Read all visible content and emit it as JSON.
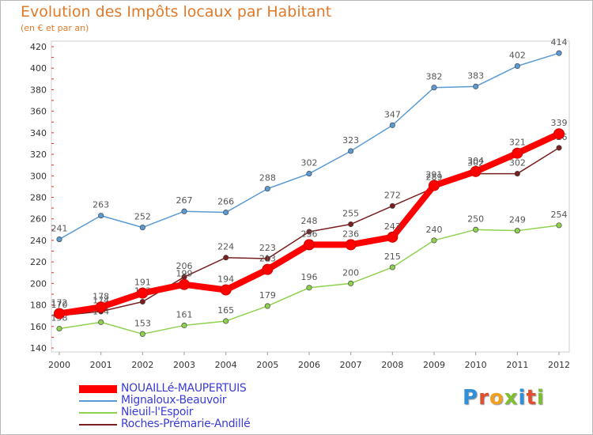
{
  "header": {
    "title": "Evolution des Impôts locaux par Habitant",
    "subtitle": "(en € et par an)"
  },
  "brand": {
    "letters": [
      "P",
      "r",
      "o",
      "x",
      "i",
      "t",
      "i"
    ],
    "colors": [
      "#2f8fd8",
      "#e05030",
      "#f0a020",
      "#7cc030",
      "#2f8fd8",
      "#e05030",
      "#7cc030"
    ]
  },
  "chart_data": {
    "type": "line",
    "x": [
      2000,
      2001,
      2002,
      2003,
      2004,
      2005,
      2006,
      2007,
      2008,
      2009,
      2010,
      2011,
      2012
    ],
    "ylim": [
      140,
      420
    ],
    "yticks": [
      140,
      160,
      180,
      200,
      220,
      240,
      260,
      280,
      300,
      320,
      340,
      360,
      380,
      400,
      420
    ],
    "grid": false,
    "legend_position": "bottom-left",
    "series": [
      {
        "name": "Mignaloux-Beauvoir",
        "color": "#5b9bd5",
        "values": [
          241,
          263,
          252,
          267,
          266,
          288,
          302,
          323,
          347,
          382,
          383,
          402,
          414
        ]
      },
      {
        "name": "Nieuil-l'Espoir",
        "color": "#8fd14f",
        "values": [
          158,
          164,
          153,
          161,
          165,
          179,
          196,
          200,
          215,
          240,
          250,
          249,
          254
        ]
      },
      {
        "name": "Roches-Prémarie-Andillé",
        "color": "#7a1f1f",
        "values": [
          170,
          174,
          183,
          206,
          224,
          223,
          248,
          255,
          272,
          289,
          302,
          302,
          326
        ]
      },
      {
        "name": "NOUAILLé-MAUPERTUIS",
        "color": "#ff0000",
        "values": [
          172,
          178,
          191,
          199,
          194,
          213,
          236,
          236,
          243,
          291,
          304,
          321,
          339
        ]
      }
    ]
  },
  "legend": [
    {
      "name": "NOUAILLé-MAUPERTUIS",
      "color": "#ff0000"
    },
    {
      "name": "Mignaloux-Beauvoir",
      "color": "#5b9bd5"
    },
    {
      "name": "Nieuil-l'Espoir",
      "color": "#8fd14f"
    },
    {
      "name": "Roches-Prémarie-Andillé",
      "color": "#7a1f1f"
    }
  ]
}
